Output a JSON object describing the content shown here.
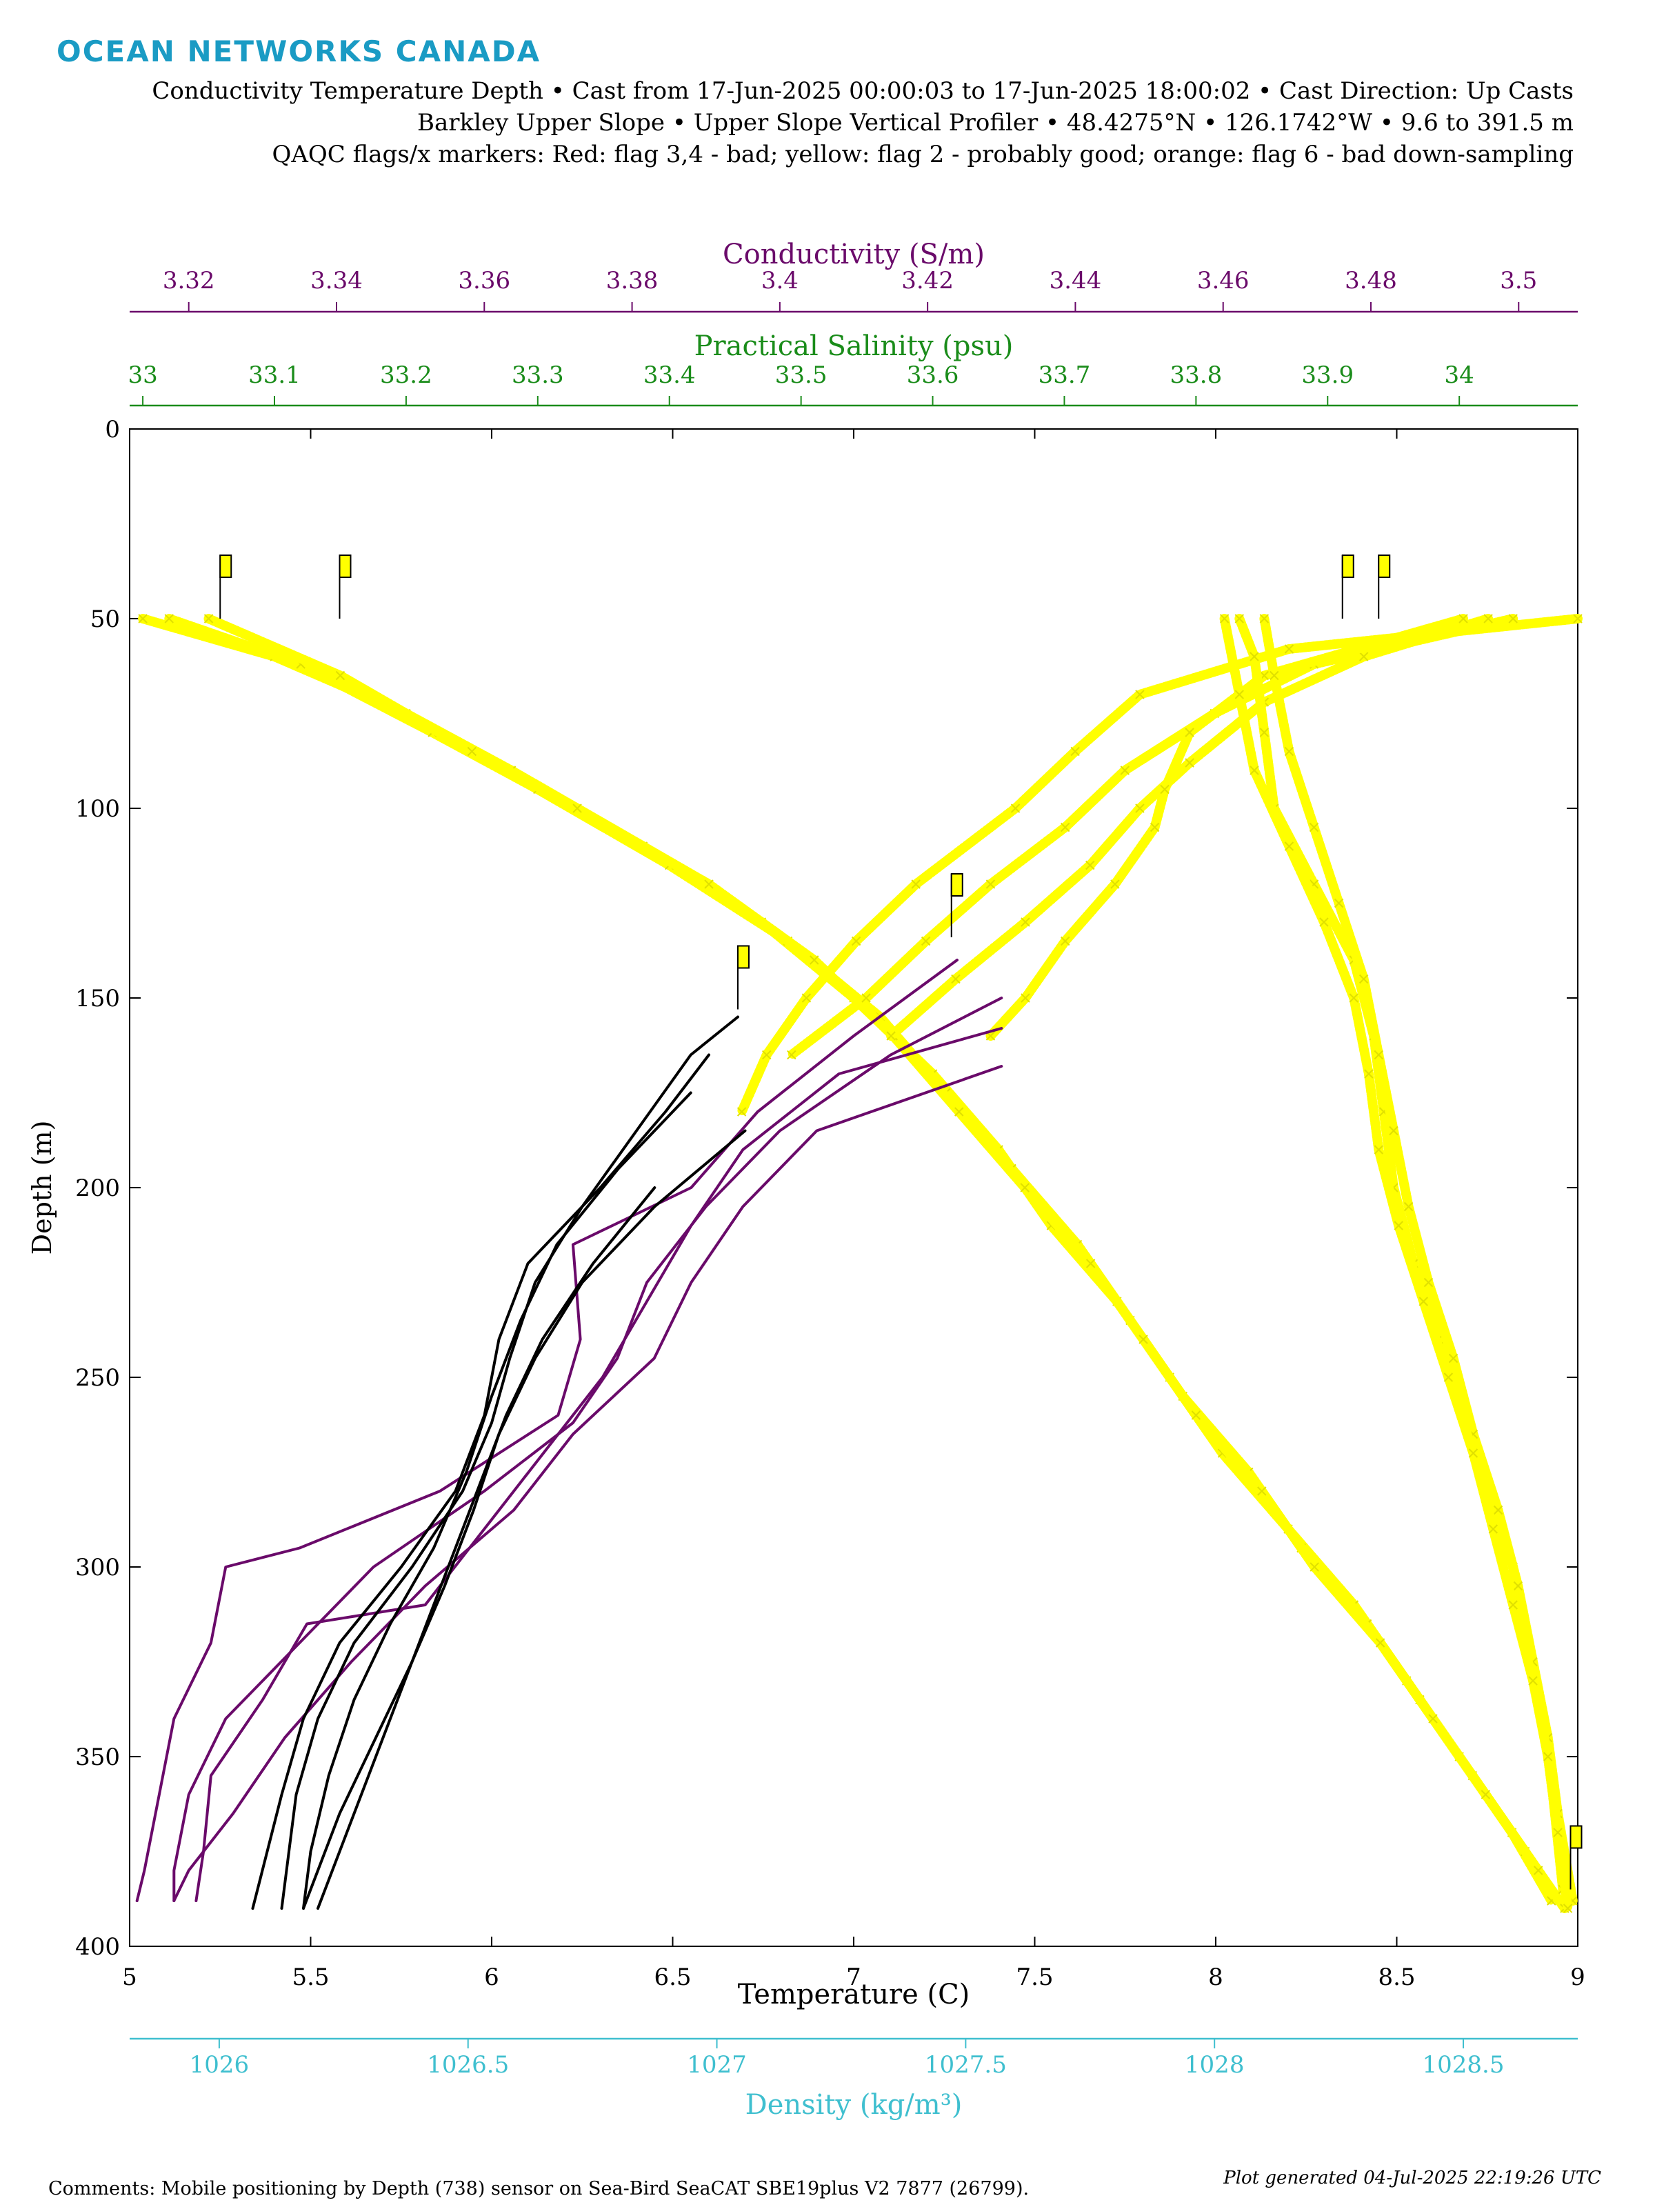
{
  "header": {
    "logo": "OCEAN NETWORKS CANADA",
    "line1": "Conductivity Temperature Depth • Cast from 17-Jun-2025 00:00:03 to 17-Jun-2025 18:00:02 • Cast Direction: Up Casts",
    "line2": "Barkley Upper Slope • Upper Slope Vertical Profiler • 48.4275°N • 126.1742°W • 9.6 to 391.5 m",
    "line3": "QAQC flags/x markers: Red: flag 3,4 - bad; yellow: flag 2 - probably good; orange: flag 6 - bad down-sampling"
  },
  "footer": {
    "comments": "Comments: Mobile positioning by Depth (738) sensor on Sea-Bird SeaCAT SBE19plus V2 7877 (26799).",
    "generated": "Plot generated 04-Jul-2025 22:19:26 UTC"
  },
  "colors": {
    "conductivity": "#6a0a6a",
    "salinity": "#1a8c1a",
    "density": "#3fbfcf",
    "temperature": "#000000",
    "flag_probably_good": "#ffff00"
  },
  "chart_data": {
    "type": "line",
    "y_axis": {
      "label": "Depth (m)",
      "range": [
        0,
        400
      ],
      "inverted": true,
      "ticks": [
        "0",
        "50",
        "100",
        "150",
        "200",
        "250",
        "300",
        "350",
        "400"
      ]
    },
    "axes": [
      {
        "key": "temperature",
        "label": "Temperature (C)",
        "position": "bottom",
        "range": [
          5,
          9
        ],
        "ticks": [
          "5",
          "5.5",
          "6",
          "6.5",
          "7",
          "7.5",
          "8",
          "8.5",
          "9"
        ]
      },
      {
        "key": "density",
        "label": "Density (kg/m³)",
        "position": "bottom-offset",
        "range": [
          1025.82,
          1028.73
        ],
        "ticks": [
          "1026",
          "1026.5",
          "1027",
          "1027.5",
          "1028",
          "1028.5"
        ]
      },
      {
        "key": "conductivity",
        "label": "Conductivity (S/m)",
        "position": "top",
        "range": [
          3.312,
          3.508
        ],
        "ticks": [
          "3.32",
          "3.34",
          "3.36",
          "3.38",
          "3.4",
          "3.42",
          "3.44",
          "3.46",
          "3.48",
          "3.5"
        ]
      },
      {
        "key": "salinity",
        "label": "Practical Salinity (psu)",
        "position": "top-offset",
        "range": [
          32.99,
          34.09
        ],
        "ticks": [
          "33",
          "33.1",
          "33.2",
          "33.3",
          "33.4",
          "33.5",
          "33.6",
          "33.7",
          "33.8",
          "33.9",
          "34"
        ]
      }
    ],
    "series": [
      {
        "key": "temperature",
        "marker": "line",
        "casts": [
          {
            "depth": [
              155,
              165,
              185,
              205,
              225,
              245,
              262,
              280,
              300,
              320,
              340,
              360,
              375,
              390
            ],
            "value": [
              6.68,
              6.55,
              6.4,
              6.25,
              6.12,
              6.05,
              6.0,
              5.92,
              5.78,
              5.62,
              5.52,
              5.46,
              5.44,
              5.42
            ]
          },
          {
            "depth": [
              165,
              180,
              200,
              220,
              240,
              260,
              280,
              300,
              320,
              340,
              360,
              375,
              390
            ],
            "value": [
              6.6,
              6.48,
              6.3,
              6.1,
              6.02,
              5.98,
              5.9,
              5.75,
              5.58,
              5.48,
              5.42,
              5.38,
              5.34
            ]
          },
          {
            "depth": [
              175,
              195,
              215,
              235,
              255,
              275,
              295,
              315,
              335,
              355,
              375,
              390
            ],
            "value": [
              6.55,
              6.35,
              6.18,
              6.08,
              6.0,
              5.93,
              5.84,
              5.72,
              5.62,
              5.55,
              5.5,
              5.48
            ]
          },
          {
            "depth": [
              185,
              205,
              225,
              245,
              265,
              285,
              305,
              325,
              345,
              365,
              380,
              390
            ],
            "value": [
              6.7,
              6.45,
              6.25,
              6.12,
              6.02,
              5.95,
              5.87,
              5.78,
              5.68,
              5.58,
              5.52,
              5.48
            ]
          },
          {
            "depth": [
              200,
              220,
              240,
              260,
              280,
              300,
              320,
              340,
              360,
              380,
              390
            ],
            "value": [
              6.45,
              6.28,
              6.14,
              6.04,
              5.96,
              5.88,
              5.8,
              5.72,
              5.64,
              5.56,
              5.52
            ]
          }
        ]
      },
      {
        "key": "conductivity",
        "marker": "line",
        "casts": [
          {
            "depth": [
              140,
              160,
              180,
              200,
              215,
              240,
              260,
              280,
              295,
              300,
              320,
              340,
              360,
              380,
              388
            ],
            "value": [
              3.424,
              3.41,
              3.397,
              3.388,
              3.372,
              3.373,
              3.37,
              3.354,
              3.335,
              3.325,
              3.323,
              3.318,
              3.316,
              3.314,
              3.313
            ]
          },
          {
            "depth": [
              150,
              165,
              185,
              205,
              225,
              245,
              262,
              280,
              300,
              320,
              340,
              360,
              380,
              388
            ],
            "value": [
              3.43,
              3.415,
              3.4,
              3.39,
              3.382,
              3.378,
              3.372,
              3.36,
              3.345,
              3.335,
              3.325,
              3.32,
              3.318,
              3.318
            ]
          },
          {
            "depth": [
              158,
              170,
              190,
              210,
              230,
              250,
              265,
              285,
              310,
              315,
              335,
              355,
              375,
              388
            ],
            "value": [
              3.43,
              3.408,
              3.395,
              3.388,
              3.382,
              3.376,
              3.37,
              3.362,
              3.352,
              3.336,
              3.33,
              3.323,
              3.322,
              3.321
            ]
          },
          {
            "depth": [
              168,
              185,
              205,
              225,
              245,
              265,
              285,
              305,
              325,
              345,
              365,
              380,
              388
            ],
            "value": [
              3.43,
              3.405,
              3.395,
              3.388,
              3.383,
              3.372,
              3.364,
              3.352,
              3.342,
              3.333,
              3.326,
              3.32,
              3.318
            ]
          }
        ]
      },
      {
        "key": "salinity",
        "marker": "x",
        "flag": "yellow",
        "casts": [
          {
            "depth": [
              50,
              60,
              75,
              90,
              110,
              130,
              150,
              170,
              190,
              210,
              230,
              250,
              270,
              290,
              310,
              330,
              350,
              370,
              388
            ],
            "value": [
              33.0,
              33.1,
              33.2,
              33.28,
              33.38,
              33.47,
              33.54,
              33.6,
              33.65,
              33.69,
              33.74,
              33.78,
              33.82,
              33.87,
              33.92,
              33.96,
              34.0,
              34.04,
              34.07
            ]
          },
          {
            "depth": [
              50,
              62,
              80,
              95,
              115,
              135,
              155,
              175,
              195,
              215,
              235,
              255,
              275,
              295,
              315,
              335,
              355,
              375,
              388
            ],
            "value": [
              33.02,
              33.12,
              33.22,
              33.3,
              33.4,
              33.49,
              33.56,
              33.61,
              33.66,
              33.71,
              33.75,
              33.79,
              33.84,
              33.88,
              33.93,
              33.97,
              34.01,
              34.05,
              34.07
            ]
          },
          {
            "depth": [
              50,
              65,
              85,
              100,
              120,
              140,
              160,
              180,
              200,
              220,
              240,
              260,
              280,
              300,
              320,
              340,
              360,
              380,
              390
            ],
            "value": [
              33.05,
              33.15,
              33.25,
              33.33,
              33.43,
              33.51,
              33.57,
              33.62,
              33.67,
              33.72,
              33.76,
              33.8,
              33.85,
              33.89,
              33.94,
              33.98,
              34.02,
              34.06,
              34.08
            ]
          }
        ]
      },
      {
        "key": "density",
        "marker": "x",
        "flag": "yellow",
        "casts": [
          {
            "depth": [
              50,
              58,
              70,
              85,
              100,
              120,
              135,
              150,
              165,
              180
            ],
            "value": [
              1028.73,
              1028.15,
              1027.85,
              1027.72,
              1027.6,
              1027.4,
              1027.28,
              1027.18,
              1027.1,
              1027.05
            ]
          },
          {
            "depth": [
              50,
              62,
              75,
              90,
              105,
              120,
              135,
              150,
              165
            ],
            "value": [
              1028.6,
              1028.2,
              1028.0,
              1027.82,
              1027.7,
              1027.55,
              1027.42,
              1027.3,
              1027.15
            ]
          },
          {
            "depth": [
              50,
              60,
              72,
              88,
              100,
              115,
              130,
              145,
              160
            ],
            "value": [
              1028.55,
              1028.3,
              1028.1,
              1027.95,
              1027.85,
              1027.75,
              1027.62,
              1027.48,
              1027.35
            ]
          },
          {
            "depth": [
              50,
              65,
              80,
              95,
              105,
              120,
              135,
              150,
              160
            ],
            "value": [
              1028.5,
              1028.1,
              1027.95,
              1027.9,
              1027.88,
              1027.8,
              1027.7,
              1027.62,
              1027.55
            ]
          }
        ]
      },
      {
        "key": "density",
        "marker": "x",
        "flag": "yellow",
        "role": "deep",
        "casts": [
          {
            "depth": [
              50,
              60,
              80,
              100,
              120,
              140,
              160,
              180,
              200,
              220,
              240,
              260,
              280,
              300,
              320,
              340,
              360,
              385
            ],
            "value": [
              1028.05,
              1028.08,
              1028.1,
              1028.12,
              1028.2,
              1028.28,
              1028.32,
              1028.34,
              1028.36,
              1028.4,
              1028.45,
              1028.5,
              1028.55,
              1028.6,
              1028.63,
              1028.66,
              1028.68,
              1028.7
            ]
          },
          {
            "depth": [
              50,
              65,
              85,
              105,
              125,
              145,
              165,
              185,
              205,
              225,
              245,
              265,
              285,
              305,
              325,
              345,
              365,
              388
            ],
            "value": [
              1028.1,
              1028.12,
              1028.15,
              1028.2,
              1028.25,
              1028.3,
              1028.33,
              1028.36,
              1028.39,
              1028.43,
              1028.48,
              1028.52,
              1028.57,
              1028.61,
              1028.64,
              1028.67,
              1028.69,
              1028.72
            ]
          },
          {
            "depth": [
              50,
              70,
              90,
              110,
              130,
              150,
              170,
              190,
              210,
              230,
              250,
              270,
              290,
              310,
              330,
              350,
              370,
              390
            ],
            "value": [
              1028.02,
              1028.05,
              1028.08,
              1028.15,
              1028.22,
              1028.28,
              1028.31,
              1028.33,
              1028.37,
              1028.42,
              1028.47,
              1028.52,
              1028.56,
              1028.6,
              1028.64,
              1028.67,
              1028.69,
              1028.71
            ]
          }
        ]
      }
    ],
    "flag_markers": [
      {
        "axis": "temperature",
        "value": 5.25,
        "depth": 50
      },
      {
        "axis": "temperature",
        "value": 5.58,
        "depth": 50
      },
      {
        "axis": "temperature",
        "value": 8.35,
        "depth": 50
      },
      {
        "axis": "temperature",
        "value": 8.45,
        "depth": 50
      },
      {
        "axis": "temperature",
        "value": 7.27,
        "depth": 134
      },
      {
        "axis": "temperature",
        "value": 6.68,
        "depth": 153
      },
      {
        "axis": "temperature",
        "value": 8.98,
        "depth": 385
      }
    ]
  }
}
